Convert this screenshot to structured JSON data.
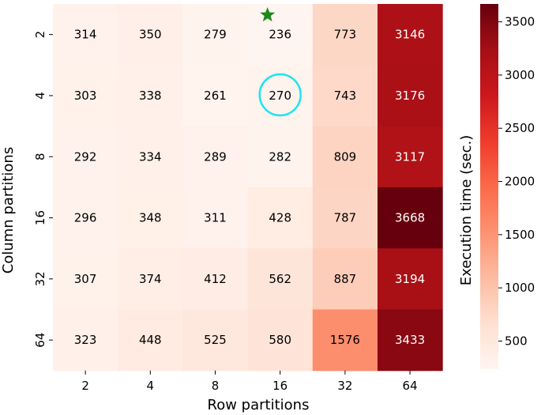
{
  "chart_data": {
    "type": "heatmap",
    "xlabel": "Row partitions",
    "ylabel": "Column partitions",
    "x_categories": [
      "2",
      "4",
      "8",
      "16",
      "32",
      "64"
    ],
    "y_categories": [
      "2",
      "4",
      "8",
      "16",
      "32",
      "64"
    ],
    "values": [
      [
        314,
        350,
        279,
        236,
        773,
        3146
      ],
      [
        303,
        338,
        261,
        270,
        743,
        3176
      ],
      [
        292,
        334,
        289,
        282,
        809,
        3117
      ],
      [
        296,
        348,
        311,
        428,
        787,
        3668
      ],
      [
        307,
        374,
        412,
        562,
        887,
        3194
      ],
      [
        323,
        448,
        525,
        580,
        1576,
        3433
      ]
    ],
    "colorbar": {
      "label": "Execution time (sec.)",
      "colormap": "Reds",
      "vmin": 236,
      "vmax": 3668,
      "ticks": [
        500,
        1000,
        1500,
        2000,
        2500,
        3000,
        3500
      ]
    },
    "markers": [
      {
        "type": "star",
        "row": "2",
        "col": "16",
        "color": "#1a8a1a"
      },
      {
        "type": "circle",
        "row": "4",
        "col": "16",
        "color": "#19e6f0"
      }
    ]
  }
}
